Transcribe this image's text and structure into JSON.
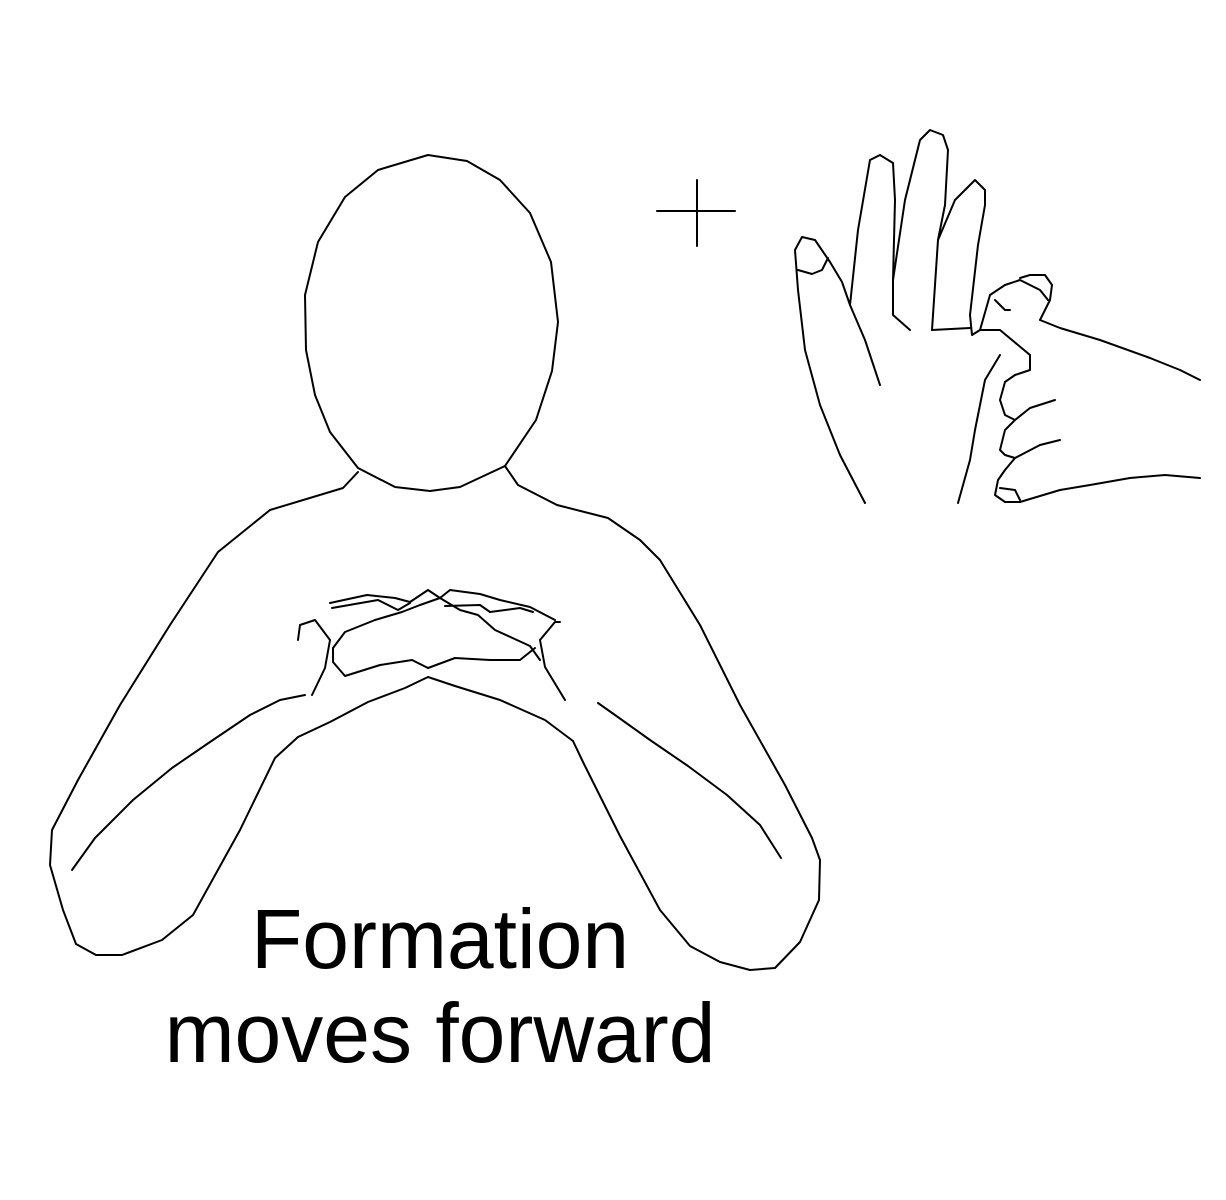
{
  "caption": {
    "line1": "Formation",
    "line2": "moves forward"
  },
  "colors": {
    "stroke": "#000000",
    "background": "#ffffff"
  },
  "icons": {
    "plus": "plus-icon"
  }
}
